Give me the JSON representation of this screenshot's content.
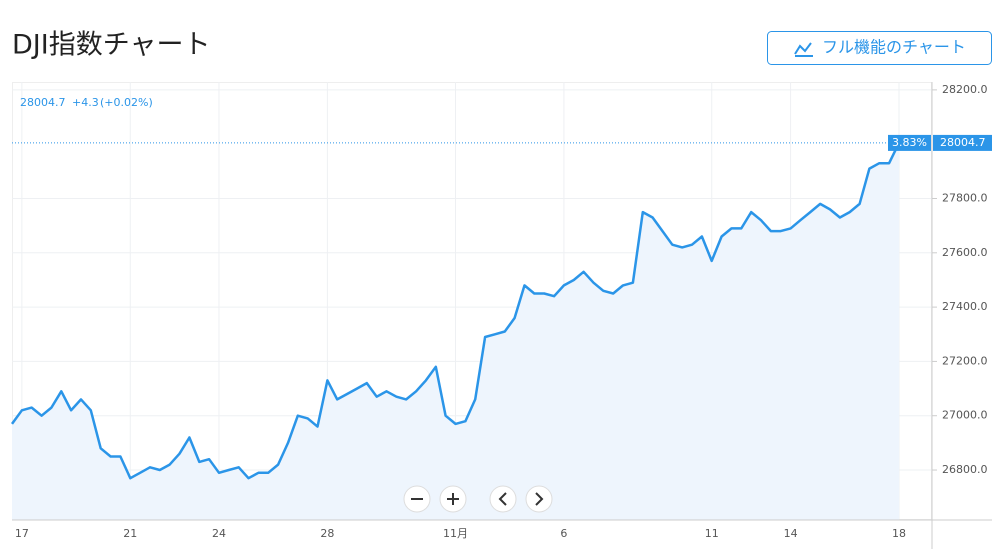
{
  "header": {
    "title": "DJI指数チャート",
    "button": "フル機能のチャート"
  },
  "chart_data": {
    "type": "area",
    "color": "#2b95e8",
    "fill": "#eef5fd",
    "grid": true,
    "change": "+4.3",
    "change_percent": "(+0.02%)",
    "period_change": "3.83%",
    "categories": [
      null,
      "17",
      null,
      null,
      null,
      null,
      null,
      null,
      null,
      null,
      null,
      null,
      "21",
      null,
      null,
      null,
      null,
      null,
      null,
      null,
      null,
      "24",
      null,
      null,
      null,
      null,
      null,
      null,
      null,
      null,
      null,
      null,
      "28",
      null,
      null,
      null,
      null,
      null,
      null,
      null,
      null,
      null,
      null,
      null,
      null,
      "11月",
      null,
      null,
      null,
      null,
      null,
      null,
      null,
      null,
      null,
      null,
      "6",
      null,
      null,
      null,
      null,
      null,
      null,
      null,
      null,
      null,
      null,
      null,
      null,
      null,
      null,
      "11",
      null,
      null,
      null,
      null,
      null,
      null,
      null,
      "14",
      null,
      null,
      null,
      null,
      null,
      null,
      null,
      null,
      null,
      null,
      "18"
    ],
    "values": [
      26970,
      27020,
      27030,
      27000,
      27030,
      27090,
      27020,
      27060,
      27020,
      26880,
      26850,
      26850,
      26770,
      26790,
      26810,
      26800,
      26820,
      26860,
      26920,
      26830,
      26840,
      26790,
      26800,
      26810,
      26770,
      26790,
      26790,
      26820,
      26900,
      27000,
      26990,
      26960,
      27130,
      27060,
      27080,
      27100,
      27120,
      27070,
      27090,
      27070,
      27060,
      27090,
      27130,
      27180,
      27000,
      26970,
      26980,
      27060,
      27290,
      27300,
      27310,
      27360,
      27480,
      27450,
      27450,
      27440,
      27480,
      27500,
      27530,
      27490,
      27460,
      27450,
      27480,
      27490,
      27750,
      27730,
      27680,
      27630,
      27620,
      27630,
      27660,
      27570,
      27660,
      27690,
      27690,
      27750,
      27720,
      27680,
      27680,
      27690,
      27720,
      27750,
      27780,
      27760,
      27730,
      27750,
      27780,
      27910,
      27930,
      27930,
      28004.7
    ],
    "ylim": [
      26616,
      28229
    ],
    "yticks": [
      {
        "value": 26800,
        "label": "26800.0"
      },
      {
        "value": 27000,
        "label": "27000.0"
      },
      {
        "value": 27200,
        "label": "27200.0"
      },
      {
        "value": 27400,
        "label": "27400.0"
      },
      {
        "value": 27600,
        "label": "27600.0"
      },
      {
        "value": 27800,
        "label": "27800.0"
      },
      {
        "value": 28200,
        "label": "28200.0"
      }
    ]
  }
}
